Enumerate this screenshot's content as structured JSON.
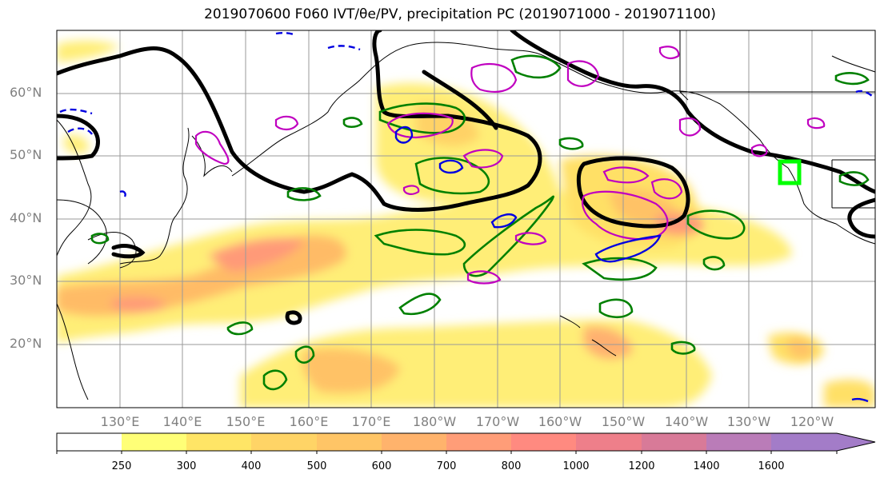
{
  "title": "2019070600 F060 IVT/θe/PV, precipitation PC (2019071000 - 2019071100)",
  "map": {
    "lat_labels": [
      "60°N",
      "50°N",
      "40°N",
      "30°N",
      "20°N"
    ],
    "lon_labels": [
      "130°E",
      "140°E",
      "150°E",
      "160°E",
      "170°E",
      "180°W",
      "170°W",
      "160°W",
      "150°W",
      "140°W",
      "130°W",
      "120°W"
    ],
    "highlight_box_color": "#00ff00",
    "contour_colors": {
      "thick": "#000000",
      "green": "#008000",
      "magenta": "#c000c0",
      "blue": "#0000ff"
    }
  },
  "colorbar": {
    "labels": [
      "250",
      "300",
      "400",
      "500",
      "600",
      "700",
      "800",
      "1000",
      "1200",
      "1400",
      "1600"
    ],
    "colors": [
      "#ffffff",
      "#ffff66",
      "#ffe066",
      "#ffd266",
      "#ffc266",
      "#ffb070",
      "#ff9a78",
      "#ff8a80",
      "#ee7c8a",
      "#d87a98",
      "#b87cb8",
      "#a07cc8"
    ]
  }
}
